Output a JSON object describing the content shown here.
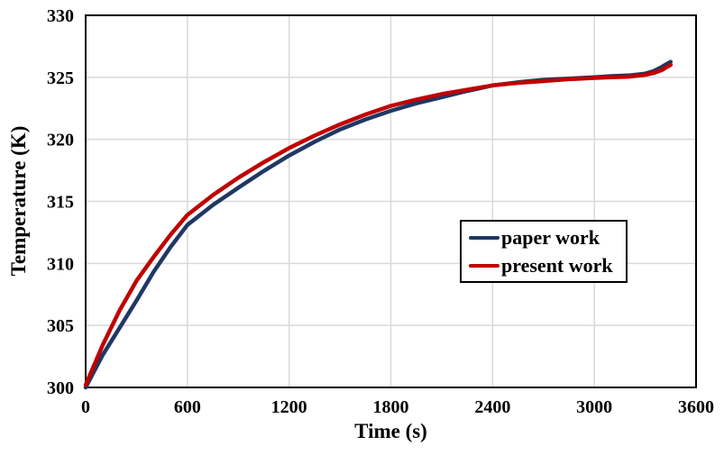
{
  "chart_data": {
    "type": "line",
    "title": "",
    "xlabel": "Time (s)",
    "ylabel": "Temperature (K)",
    "xlim": [
      0,
      3600
    ],
    "ylim": [
      300,
      330
    ],
    "xticks": [
      0,
      600,
      1200,
      1800,
      2400,
      3000,
      3600
    ],
    "yticks": [
      300,
      305,
      310,
      315,
      320,
      325,
      330
    ],
    "grid": true,
    "gridline_color": "#d9d9d9",
    "axis_color": "#000000",
    "legend_position": "center-right",
    "x": [
      0,
      100,
      200,
      300,
      400,
      500,
      600,
      750,
      900,
      1050,
      1200,
      1350,
      1500,
      1650,
      1800,
      1950,
      2100,
      2250,
      2400,
      2550,
      2700,
      2850,
      3000,
      3100,
      3200,
      3300,
      3350,
      3400,
      3430,
      3450
    ],
    "series": [
      {
        "name": "paper work",
        "color": "#1f3864",
        "values": [
          300.0,
          302.6,
          304.8,
          307.0,
          309.3,
          311.3,
          313.1,
          314.7,
          316.1,
          317.45,
          318.7,
          319.8,
          320.8,
          321.6,
          322.3,
          322.9,
          323.4,
          323.9,
          324.35,
          324.6,
          324.8,
          324.9,
          325.0,
          325.1,
          325.15,
          325.3,
          325.5,
          325.85,
          326.1,
          326.25
        ]
      },
      {
        "name": "present work",
        "color": "#c00000",
        "values": [
          300.2,
          303.4,
          306.2,
          308.6,
          310.5,
          312.3,
          313.9,
          315.5,
          316.9,
          318.15,
          319.3,
          320.3,
          321.2,
          322.0,
          322.7,
          323.2,
          323.65,
          324.0,
          324.35,
          324.55,
          324.7,
          324.85,
          324.95,
          325.0,
          325.05,
          325.2,
          325.35,
          325.6,
          325.85,
          326.0
        ]
      }
    ]
  }
}
